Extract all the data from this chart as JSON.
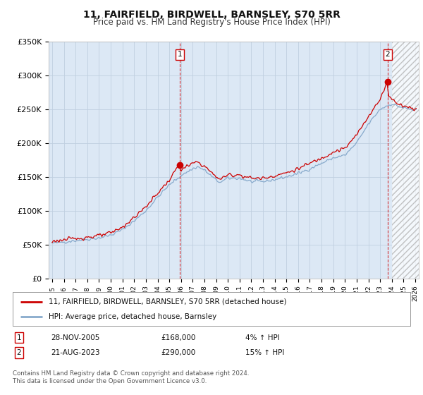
{
  "title": "11, FAIRFIELD, BIRDWELL, BARNSLEY, S70 5RR",
  "subtitle": "Price paid vs. HM Land Registry's House Price Index (HPI)",
  "ylim": [
    0,
    350000
  ],
  "yticks": [
    0,
    50000,
    100000,
    150000,
    200000,
    250000,
    300000,
    350000
  ],
  "ytick_labels": [
    "£0",
    "£50K",
    "£100K",
    "£150K",
    "£200K",
    "£250K",
    "£300K",
    "£350K"
  ],
  "background_color": "#ffffff",
  "plot_bg_color": "#dce8f5",
  "grid_color": "#c0cfe0",
  "hatch_color": "#c8d8e8",
  "transaction1_x": 2005.92,
  "transaction1_y": 168000,
  "transaction2_x": 2023.64,
  "transaction2_y": 290000,
  "hatch_start_x": 2024.0,
  "legend_label1": "11, FAIRFIELD, BIRDWELL, BARNSLEY, S70 5RR (detached house)",
  "legend_label2": "HPI: Average price, detached house, Barnsley",
  "footer": "Contains HM Land Registry data © Crown copyright and database right 2024.\nThis data is licensed under the Open Government Licence v3.0.",
  "line_color_price": "#cc0000",
  "line_color_hpi": "#88aacc",
  "xlim_left": 1994.7,
  "xlim_right": 2026.3
}
